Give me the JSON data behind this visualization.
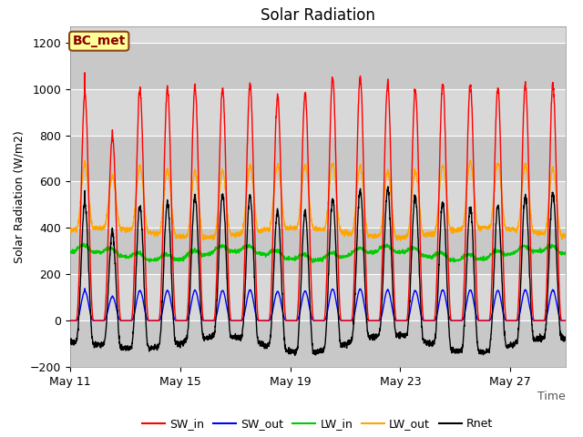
{
  "title": "Solar Radiation",
  "xlabel": "Time",
  "ylabel": "Solar Radiation (W/m2)",
  "annotation": "BC_met",
  "ylim": [
    -200,
    1270
  ],
  "yticks": [
    -200,
    0,
    200,
    400,
    600,
    800,
    1000,
    1200
  ],
  "xtick_days": [
    0,
    4,
    8,
    12,
    16
  ],
  "xtick_labels": [
    "May 11",
    "May 15",
    "May 19",
    "May 23",
    "May 27"
  ],
  "n_days": 18,
  "xlim_end": 18,
  "SW_in_color": "#ff0000",
  "SW_out_color": "#0000ff",
  "LW_in_color": "#00cc00",
  "LW_out_color": "#ffa500",
  "Rnet_color": "#000000",
  "line_width": 1.0,
  "legend_labels": [
    "SW_in",
    "SW_out",
    "LW_in",
    "LW_out",
    "Rnet"
  ],
  "legend_colors": [
    "#ff0000",
    "#0000ff",
    "#00cc00",
    "#ffa500",
    "#000000"
  ],
  "background_color": "#ffffff",
  "plot_bg_light": "#d8d8d8",
  "plot_bg_dark": "#c8c8c8",
  "grid_color": "#ffffff",
  "annotation_bg": "#ffff99",
  "annotation_border": "#8B4513",
  "title_fontsize": 12,
  "axis_label_fontsize": 9,
  "tick_fontsize": 9,
  "legend_fontsize": 9
}
